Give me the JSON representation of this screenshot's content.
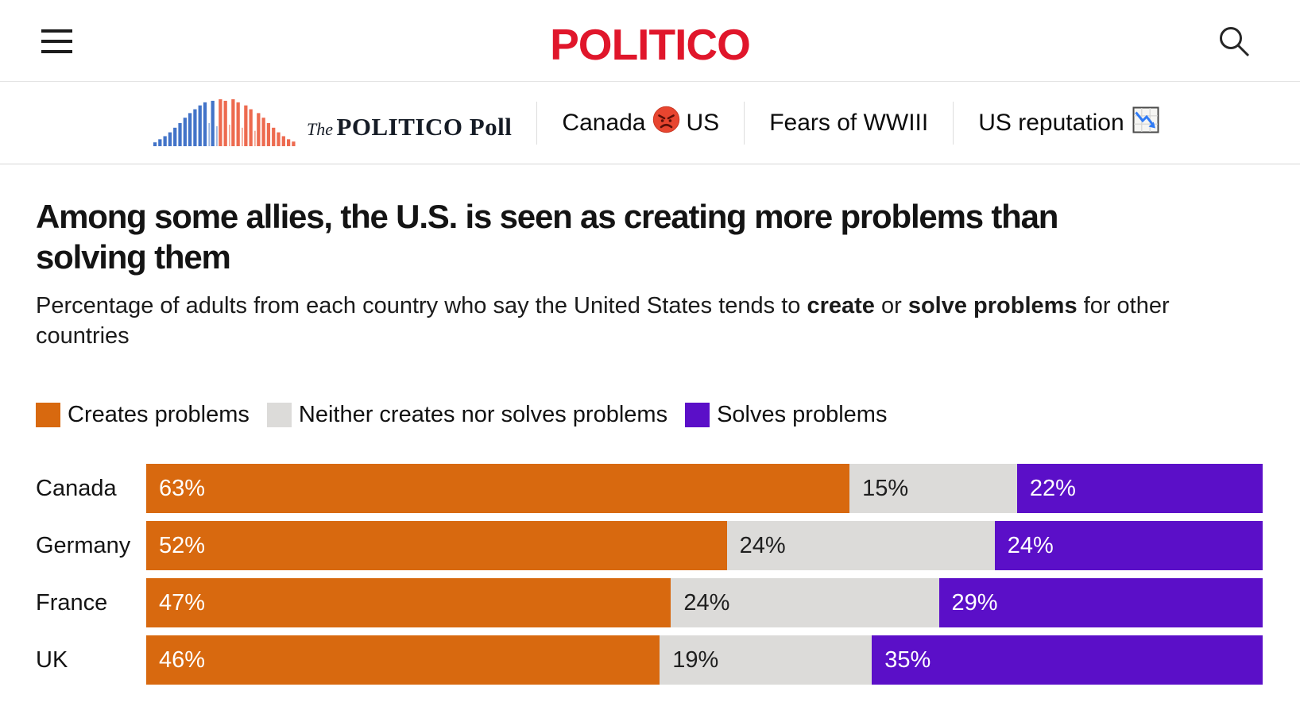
{
  "header": {
    "brand": "POLITICO"
  },
  "subnav": {
    "logo": {
      "the": "The",
      "main": "POLITICO Poll"
    },
    "item1": {
      "before": "Canada",
      "after": "US",
      "icon": "angry-face-emoji"
    },
    "item2": {
      "label": "Fears of WWIII"
    },
    "item3": {
      "label": "US reputation",
      "icon": "chart-decreasing-emoji"
    }
  },
  "article": {
    "title_lines": [
      "Among some allies, the U.S. is seen as creating more problems than",
      "solving them"
    ],
    "subtitle_segments": [
      {
        "text": "Percentage of adults from each country who say the United States tends to ",
        "bold": false
      },
      {
        "text": "create",
        "bold": true
      },
      {
        "text": " or ",
        "bold": false
      },
      {
        "text": "solve problems",
        "bold": true
      },
      {
        "text": " for other countries",
        "bold": false
      }
    ]
  },
  "chart_data": {
    "type": "bar",
    "orientation": "horizontal-stacked",
    "categories": [
      "Canada",
      "Germany",
      "France",
      "UK"
    ],
    "series": [
      {
        "name": "Creates problems",
        "color": "#d8690f",
        "label_color": "#ffffff",
        "values": [
          63,
          52,
          47,
          46
        ]
      },
      {
        "name": "Neither creates nor solves problems",
        "color": "#dcdbd9",
        "label_color": "#1f1f1f",
        "values": [
          15,
          24,
          24,
          19
        ]
      },
      {
        "name": "Solves problems",
        "color": "#5b0fc8",
        "label_color": "#ffffff",
        "values": [
          22,
          24,
          29,
          35
        ]
      }
    ],
    "value_suffix": "%",
    "xlim": [
      0,
      100
    ],
    "legend_position": "top",
    "grid": false
  },
  "colors": {
    "brand_red": "#e0162b",
    "creates": "#d8690f",
    "neither": "#dcdbd9",
    "solves": "#5b0fc8"
  }
}
